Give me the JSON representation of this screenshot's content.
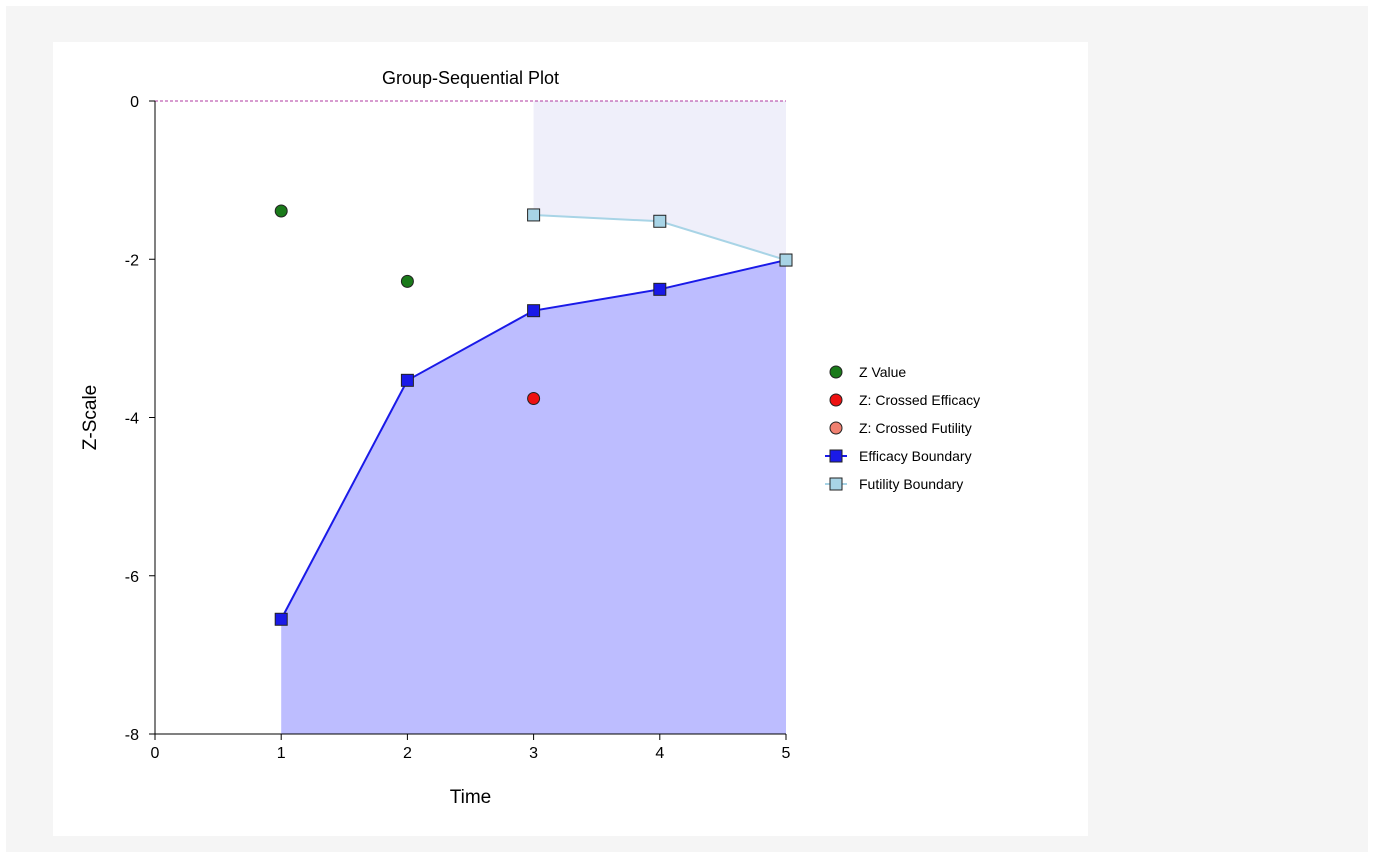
{
  "chart_data": {
    "type": "line",
    "title": "Group-Sequential Plot",
    "xlabel": "Time",
    "ylabel": "Z-Scale",
    "xlim": [
      0,
      5
    ],
    "ylim": [
      -8,
      0
    ],
    "x_ticks": [
      "0",
      "1",
      "2",
      "3",
      "4",
      "5"
    ],
    "y_ticks": [
      "0",
      "-2",
      "-4",
      "-6",
      "-8"
    ],
    "grid": false,
    "legend_position": "right",
    "reference_line": {
      "y": 0,
      "style": "dashed",
      "color": "#b03aa0"
    },
    "series": [
      {
        "name": "Z Value",
        "kind": "points",
        "color": "#1a7a1a",
        "marker": "circle",
        "x": [
          1,
          2
        ],
        "y": [
          -1.39,
          -2.28
        ]
      },
      {
        "name": "Z: Crossed Efficacy",
        "kind": "points",
        "color": "#ee1111",
        "marker": "circle",
        "x": [
          3
        ],
        "y": [
          -3.76
        ]
      },
      {
        "name": "Z: Crossed Futility",
        "kind": "points",
        "color": "#f08070",
        "marker": "circle",
        "x": [],
        "y": []
      },
      {
        "name": "Efficacy Boundary",
        "kind": "line",
        "color": "#1a1ae8",
        "marker": "square",
        "x": [
          1,
          2,
          3,
          4,
          5
        ],
        "y": [
          -6.55,
          -3.53,
          -2.65,
          -2.38,
          -2.01
        ],
        "fill": "#bdbdff"
      },
      {
        "name": "Futility Boundary",
        "kind": "line",
        "color": "#a8d4e6",
        "marker": "square",
        "x": [
          3,
          4,
          5
        ],
        "y": [
          -1.44,
          -1.52,
          -2.01
        ],
        "fill": "#efeffa"
      }
    ]
  }
}
